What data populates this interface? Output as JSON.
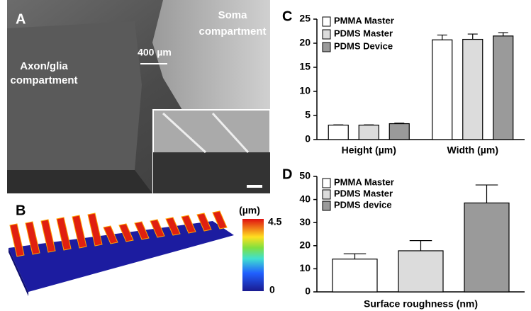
{
  "images": {
    "a": {
      "panel_label": "A",
      "soma_label": [
        "Soma",
        "compartment"
      ],
      "scale_label": "400 µm",
      "axon_label": [
        "Axon/glia",
        "compartment"
      ]
    },
    "b": {
      "panel_label": "B",
      "unit_label": "(µm)",
      "colorbar_max": "4.5",
      "colorbar_min": "0"
    }
  },
  "chart_data": [
    {
      "type": "bar",
      "panel_label": "C",
      "categories": [
        "Height (µm)",
        "Width (µm)"
      ],
      "series": [
        {
          "name": "PMMA Master",
          "color": "#ffffff",
          "values": [
            3.0,
            20.7
          ],
          "errors": [
            0.05,
            1.0
          ]
        },
        {
          "name": "PDMS Master",
          "color": "#dcdcdc",
          "values": [
            3.0,
            20.8
          ],
          "errors": [
            0.05,
            1.1
          ]
        },
        {
          "name": "PDMS Device",
          "color": "#9a9a9a",
          "values": [
            3.3,
            21.5
          ],
          "errors": [
            0.1,
            0.7
          ]
        }
      ],
      "ylim": [
        0,
        25
      ],
      "yticks": [
        0,
        5,
        10,
        15,
        20,
        25
      ]
    },
    {
      "type": "bar",
      "panel_label": "D",
      "x_label": "Surface roughness (nm)",
      "series": [
        {
          "name": "PMMA Master",
          "color": "#ffffff",
          "values": [
            14.2
          ],
          "errors": [
            2.3
          ]
        },
        {
          "name": "PDMS Master",
          "color": "#dcdcdc",
          "values": [
            17.8
          ],
          "errors": [
            4.4
          ]
        },
        {
          "name": "PDMS device",
          "color": "#9a9a9a",
          "values": [
            38.5
          ],
          "errors": [
            7.8
          ]
        }
      ],
      "ylim": [
        0,
        50
      ],
      "yticks": [
        0,
        10,
        20,
        30,
        40,
        50
      ]
    }
  ]
}
